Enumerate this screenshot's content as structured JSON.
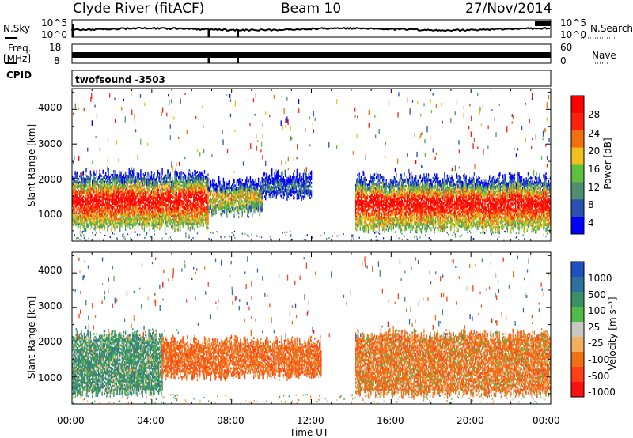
{
  "header": {
    "station": "Clyde River (fitACF)",
    "beam": "Beam 10",
    "date": "27/Nov/2014"
  },
  "strip_panels": {
    "nsky_label": "N.Sky",
    "nsearch_label": "N.Search",
    "freq_label": "Freq.",
    "freq_unit": "[MHz]",
    "nave_label": "Nave",
    "cpid_label": "CPID",
    "cpid_value": "twofsound  -3503",
    "noise_left_ticks": [
      "10^5",
      "10^0"
    ],
    "noise_right_ticks": [
      "10^5",
      "10^0"
    ],
    "freq_left_ticks": [
      "18",
      "8"
    ],
    "nave_right_ticks": [
      "60",
      "0"
    ]
  },
  "axes": {
    "ylabel": "Slant Range [km]",
    "xlabel": "Time UT",
    "yticks": [
      "1000",
      "2000",
      "3000",
      "4000"
    ],
    "xticks": [
      "00:00",
      "04:00",
      "08:00",
      "12:00",
      "16:00",
      "20:00",
      "00:00"
    ]
  },
  "colorbars": {
    "power": {
      "label": "Power [dB]",
      "ticks": [
        "4",
        "8",
        "12",
        "16",
        "20",
        "24",
        "28"
      ],
      "colors": [
        "#0000ff",
        "#2a50b0",
        "#4f8f70",
        "#5fbf40",
        "#f0c020",
        "#f07010",
        "#ff2010",
        "#ff0000"
      ]
    },
    "velocity": {
      "label": "Velocity [m s⁻¹]",
      "ticks": [
        "1000",
        "500",
        "100",
        "25",
        "-25",
        "-100",
        "-500",
        "-1000"
      ],
      "colors": [
        "#2050c0",
        "#3070a0",
        "#3b8f66",
        "#50bb45",
        "#c8c8c0",
        "#f0b060",
        "#f07018",
        "#ff4018",
        "#ff1010"
      ]
    }
  },
  "chart_data": {
    "type": "heatmap",
    "title": "Clyde River (fitACF)  Beam 10  27/Nov/2014",
    "xlabel": "Time UT",
    "ylabel": "Slant Range [km]",
    "xlim_hours": [
      0,
      24
    ],
    "ylim_km": [
      200,
      4600
    ],
    "panels": [
      {
        "name": "Power",
        "units": "dB",
        "range": [
          0,
          30
        ],
        "scatter_bands": [
          {
            "t_start": 0.0,
            "t_end": 6.8,
            "r_low": 600,
            "r_high": 2100,
            "core_value": 27
          },
          {
            "t_start": 6.8,
            "t_end": 9.5,
            "r_low": 1000,
            "r_high": 1900,
            "core_value": 18
          },
          {
            "t_start": 9.5,
            "t_end": 12.0,
            "r_low": 1500,
            "r_high": 2100,
            "core_value": 8
          },
          {
            "t_start": 14.2,
            "t_end": 24.0,
            "r_low": 550,
            "r_high": 2000,
            "core_value": 27
          }
        ]
      },
      {
        "name": "Velocity",
        "units": "m/s",
        "range": [
          -1000,
          1000
        ],
        "scatter_bands": [
          {
            "t_start": 0.0,
            "t_end": 4.5,
            "r_low": 500,
            "r_high": 2200,
            "core_value": 150
          },
          {
            "t_start": 4.5,
            "t_end": 12.5,
            "r_low": 1000,
            "r_high": 2000,
            "core_value": -200
          },
          {
            "t_start": 14.2,
            "t_end": 24.0,
            "r_low": 500,
            "r_high": 2200,
            "core_value": -150
          }
        ]
      }
    ]
  }
}
